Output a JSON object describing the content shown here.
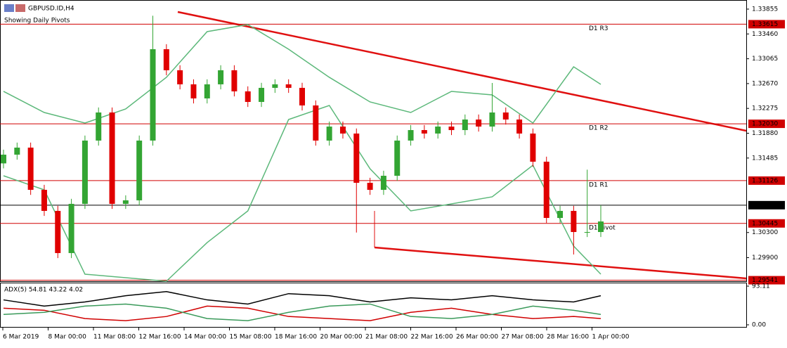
{
  "chart_data": {
    "type": "candlestick",
    "title": "GBPUSD.ID,H4",
    "subtitle": "Showing Daily Pivots",
    "candles": {
      "open": [
        1.314,
        1.31539,
        1.31651,
        1.30979,
        1.30644,
        1.29973,
        1.30756,
        1.31763,
        1.3221,
        1.30756,
        1.30812,
        1.31763,
        1.33217,
        1.32882,
        1.32658,
        1.32434,
        1.32658,
        1.32882,
        1.32546,
        1.32378,
        1.32602,
        1.32658,
        1.32602,
        1.32322,
        1.31763,
        1.31986,
        1.31875,
        1.31091,
        1.30979,
        1.31203,
        1.31763,
        1.3193,
        1.31875,
        1.31986,
        1.3193,
        1.32098,
        1.31986,
        1.3221,
        1.32098,
        1.31875,
        1.31427,
        1.30532,
        1.30644,
        1.30308,
        1.30308
      ],
      "high": [
        1.31619,
        1.31731,
        1.31731,
        1.31059,
        1.30724,
        1.30836,
        1.31843,
        1.3229,
        1.3229,
        1.30892,
        1.31843,
        1.3375,
        1.33297,
        1.32962,
        1.32738,
        1.32738,
        1.32962,
        1.32962,
        1.32626,
        1.32682,
        1.32738,
        1.32738,
        1.32682,
        1.32402,
        1.32066,
        1.32066,
        1.31955,
        1.31171,
        1.31283,
        1.31843,
        1.3201,
        1.3201,
        1.32066,
        1.32066,
        1.32178,
        1.32178,
        1.3268,
        1.3229,
        1.32178,
        1.31955,
        1.31507,
        1.30724,
        1.30724,
        1.313,
        1.30735
      ],
      "low": [
        1.3132,
        1.31459,
        1.30899,
        1.30564,
        1.29893,
        1.29893,
        1.30676,
        1.31683,
        1.30676,
        1.30676,
        1.30732,
        1.31683,
        1.32802,
        1.32578,
        1.32354,
        1.32354,
        1.32578,
        1.32466,
        1.32298,
        1.32298,
        1.32522,
        1.32522,
        1.32242,
        1.31683,
        1.31683,
        1.31795,
        1.303,
        1.30899,
        1.30899,
        1.31123,
        1.31683,
        1.31795,
        1.31795,
        1.3185,
        1.3185,
        1.31906,
        1.31906,
        1.32018,
        1.31795,
        1.31347,
        1.30452,
        1.30452,
        1.2995,
        1.30228,
        1.30228
      ],
      "close": [
        1.31539,
        1.31651,
        1.30979,
        1.30644,
        1.29973,
        1.30756,
        1.31763,
        1.3221,
        1.30756,
        1.30812,
        1.31763,
        1.33217,
        1.32882,
        1.32658,
        1.32434,
        1.32658,
        1.32882,
        1.32546,
        1.32378,
        1.32602,
        1.32658,
        1.32602,
        1.32322,
        1.31763,
        1.31986,
        1.31875,
        1.31091,
        1.30979,
        1.31203,
        1.31763,
        1.3193,
        1.31875,
        1.31986,
        1.3193,
        1.32098,
        1.31986,
        1.3221,
        1.32098,
        1.31875,
        1.31427,
        1.30532,
        1.30644,
        1.30308,
        1.30308,
        1.30476
      ],
      "up_color": "#33a533",
      "down_color": "#e00000"
    },
    "bands": {
      "x": [
        1,
        4,
        7,
        10,
        13,
        16,
        19,
        22,
        25,
        28,
        31,
        34,
        37,
        40,
        43,
        45
      ],
      "color": "#5cb87a",
      "upper": [
        1.32546,
        1.3221,
        1.32042,
        1.32266,
        1.3277,
        1.33497,
        1.33609,
        1.33217,
        1.3277,
        1.32378,
        1.3221,
        1.32546,
        1.3249,
        1.32042,
        1.32937,
        1.32658
      ],
      "lower": [
        1.31203,
        1.30979,
        1.29637,
        1.29581,
        1.29525,
        1.3014,
        1.30644,
        1.32098,
        1.32322,
        1.31315,
        1.30644,
        1.30756,
        1.30868,
        1.31371,
        1.30084,
        1.29637
      ]
    },
    "pivots": [
      {
        "name": "D1 R3",
        "value": 1.33615,
        "label": "1.33615"
      },
      {
        "name": "D1 R2",
        "value": 1.3203,
        "label": "1.32030"
      },
      {
        "name": "D1 R1",
        "value": 1.31126,
        "label": "1.31126"
      },
      {
        "name": "D1 Pivot",
        "value": 1.30445,
        "label": "1.30445"
      },
      {
        "value": 1.29541,
        "label": "1.29541"
      }
    ],
    "pivot_color": "#d00000",
    "current": {
      "value": 1.30735,
      "label": "1.30735"
    },
    "ylim": [
      1.29525,
      1.34
    ],
    "yticks": [
      {
        "value": 1.33855,
        "label": "1.33855"
      },
      {
        "value": 1.3346,
        "label": "1.33460"
      },
      {
        "value": 1.33065,
        "label": "1.33065"
      },
      {
        "value": 1.3267,
        "label": "1.32670"
      },
      {
        "value": 1.32275,
        "label": "1.32275"
      },
      {
        "value": 1.3188,
        "label": "1.31880"
      },
      {
        "value": 1.31485,
        "label": "1.31485"
      },
      {
        "value": 1.303,
        "label": "1.30300"
      },
      {
        "value": 1.299,
        "label": "1.29900"
      }
    ],
    "xlabels": [
      "6 Mar 2019",
      "8 Mar 00:00",
      "11 Mar 08:00",
      "12 Mar 16:00",
      "14 Mar 00:00",
      "15 Mar 08:00",
      "18 Mar 16:00",
      "20 Mar 00:00",
      "21 Mar 08:00",
      "22 Mar 16:00",
      "26 Mar 00:00",
      "27 Mar 08:00",
      "28 Mar 16:00",
      "1 Apr 00:00"
    ],
    "adx": {
      "label": "ADX(5) 54.81 43.22 4.02",
      "ylim": [
        0,
        93.11
      ],
      "yticks": [
        93.11,
        {
          "value": 0,
          "label": "0.00"
        }
      ],
      "series": [
        {
          "color": "#000000",
          "values": [
            60,
            45,
            55,
            70,
            80,
            60,
            50,
            75,
            70,
            55,
            65,
            60,
            70,
            60,
            55,
            70
          ]
        },
        {
          "color": "#d00000",
          "values": [
            40,
            35,
            15,
            10,
            20,
            45,
            40,
            20,
            15,
            10,
            30,
            40,
            25,
            15,
            20,
            15
          ]
        },
        {
          "color": "#3a9a5a",
          "values": [
            25,
            30,
            45,
            50,
            40,
            15,
            10,
            30,
            45,
            50,
            20,
            15,
            25,
            45,
            35,
            25
          ]
        }
      ]
    }
  }
}
